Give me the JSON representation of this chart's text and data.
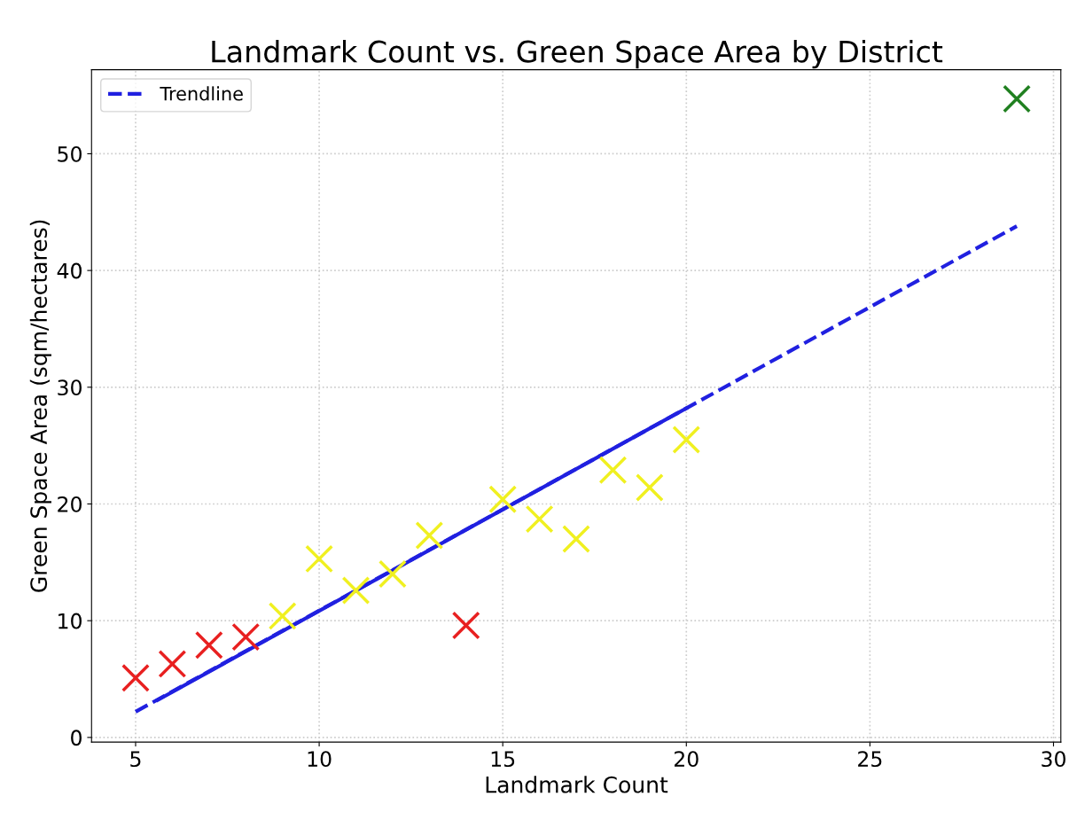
{
  "chart_data": {
    "type": "scatter",
    "title": "Landmark Count vs. Green Space Area by District",
    "xlabel": "Landmark Count",
    "ylabel": "Green Space Area (sqm/hectares)",
    "xlim": [
      3.8,
      30.2
    ],
    "xticks": [
      5,
      10,
      15,
      20,
      25,
      30
    ],
    "ylim": [
      -0.4,
      57.2
    ],
    "yticks": [
      0,
      10,
      20,
      30,
      40,
      50
    ],
    "grid": true,
    "legend": "top left",
    "series": [
      {
        "marker": "cross",
        "x": [
          5,
          6,
          7,
          8,
          9,
          10,
          11,
          12,
          13,
          14,
          15,
          16,
          17,
          18,
          19,
          20,
          29
        ],
        "values": [
          5.1,
          6.3,
          7.9,
          8.6,
          10.4,
          15.3,
          12.6,
          14.0,
          17.3,
          9.6,
          20.4,
          18.7,
          17.0,
          22.9,
          21.4,
          25.5,
          54.7
        ],
        "colors": [
          "#e82020",
          "#e82020",
          "#e82020",
          "#e82020",
          "#f0f020",
          "#f0f020",
          "#f0f020",
          "#f0f020",
          "#f0f020",
          "#e82020",
          "#f0f020",
          "#f0f020",
          "#f0f020",
          "#f0f020",
          "#f0f020",
          "#f0f020",
          "#208020"
        ]
      },
      {
        "type": "line",
        "name": "Trendline",
        "color": "#2020e0",
        "line_style": "dashed",
        "x": [
          5,
          29
        ],
        "values": [
          2.2,
          43.8
        ]
      },
      {
        "type": "line",
        "color": "#2020e0",
        "line_style": "solid",
        "x": [
          5.6,
          20
        ],
        "values": [
          3.2,
          28.2
        ]
      }
    ]
  }
}
